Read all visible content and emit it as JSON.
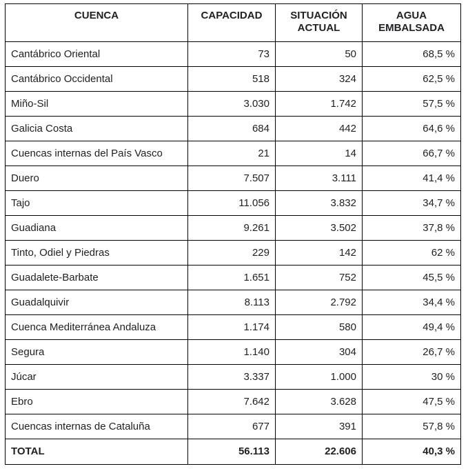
{
  "table": {
    "headers": {
      "cuenca": "CUENCA",
      "capacidad": "CAPACIDAD",
      "situacion_line1": "SITUACIÓN",
      "situacion_line2": "ACTUAL",
      "agua_line1": "AGUA",
      "agua_line2": "EMBALSADA"
    },
    "rows": [
      {
        "cuenca": "Cantábrico Oriental",
        "capacidad": "73",
        "situacion": "50",
        "agua": "68,5 %"
      },
      {
        "cuenca": "Cantábrico Occidental",
        "capacidad": "518",
        "situacion": "324",
        "agua": "62,5 %"
      },
      {
        "cuenca": "Miño-Sil",
        "capacidad": "3.030",
        "situacion": "1.742",
        "agua": "57,5 %"
      },
      {
        "cuenca": "Galicia Costa",
        "capacidad": "684",
        "situacion": "442",
        "agua": "64,6 %"
      },
      {
        "cuenca": "Cuencas internas del País Vasco",
        "capacidad": "21",
        "situacion": "14",
        "agua": "66,7 %"
      },
      {
        "cuenca": "Duero",
        "capacidad": "7.507",
        "situacion": "3.111",
        "agua": "41,4 %"
      },
      {
        "cuenca": "Tajo",
        "capacidad": "11.056",
        "situacion": "3.832",
        "agua": "34,7 %"
      },
      {
        "cuenca": "Guadiana",
        "capacidad": "9.261",
        "situacion": "3.502",
        "agua": "37,8 %"
      },
      {
        "cuenca": "Tinto, Odiel y Piedras",
        "capacidad": "229",
        "situacion": "142",
        "agua": "62 %"
      },
      {
        "cuenca": "Guadalete-Barbate",
        "capacidad": "1.651",
        "situacion": "752",
        "agua": "45,5 %"
      },
      {
        "cuenca": "Guadalquivir",
        "capacidad": "8.113",
        "situacion": "2.792",
        "agua": "34,4 %"
      },
      {
        "cuenca": "Cuenca Mediterránea Andaluza",
        "capacidad": "1.174",
        "situacion": "580",
        "agua": "49,4 %"
      },
      {
        "cuenca": "Segura",
        "capacidad": "1.140",
        "situacion": "304",
        "agua": "26,7 %"
      },
      {
        "cuenca": "Júcar",
        "capacidad": "3.337",
        "situacion": "1.000",
        "agua": "30 %"
      },
      {
        "cuenca": "Ebro",
        "capacidad": "7.642",
        "situacion": "3.628",
        "agua": "47,5 %"
      },
      {
        "cuenca": "Cuencas internas de Cataluña",
        "capacidad": "677",
        "situacion": "391",
        "agua": "57,8 %"
      }
    ],
    "total": {
      "cuenca": "TOTAL",
      "capacidad": "56.113",
      "situacion": "22.606",
      "agua": "40,3 %"
    }
  }
}
